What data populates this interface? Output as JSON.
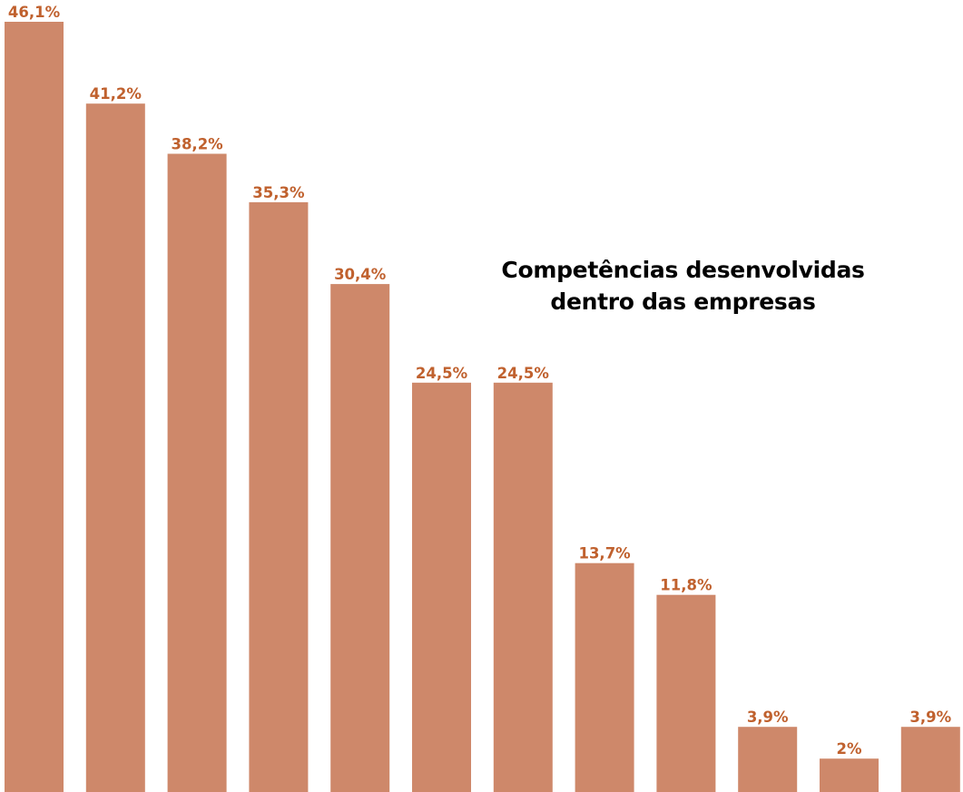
{
  "chart_data": {
    "type": "bar",
    "title_lines": [
      "Competências desenvolvidas",
      "dentro das empresas"
    ],
    "categories": [
      "",
      "",
      "",
      "",
      "",
      "",
      "",
      "",
      "",
      "",
      "",
      ""
    ],
    "values": [
      46.1,
      41.2,
      38.2,
      35.3,
      30.4,
      24.5,
      24.5,
      13.7,
      11.8,
      3.9,
      2,
      3.9
    ],
    "data_labels": [
      "46,1%",
      "41,2%",
      "38,2%",
      "35,3%",
      "30,4%",
      "24,5%",
      "24,5%",
      "13,7%",
      "11,8%",
      "3,9%",
      "2%",
      "3,9%"
    ],
    "ylim": [
      0,
      46.1
    ],
    "grid": false,
    "axes_visible": false,
    "bar_color": "#CE886A",
    "label_color": "#C0612E",
    "title_color": "#000000"
  }
}
